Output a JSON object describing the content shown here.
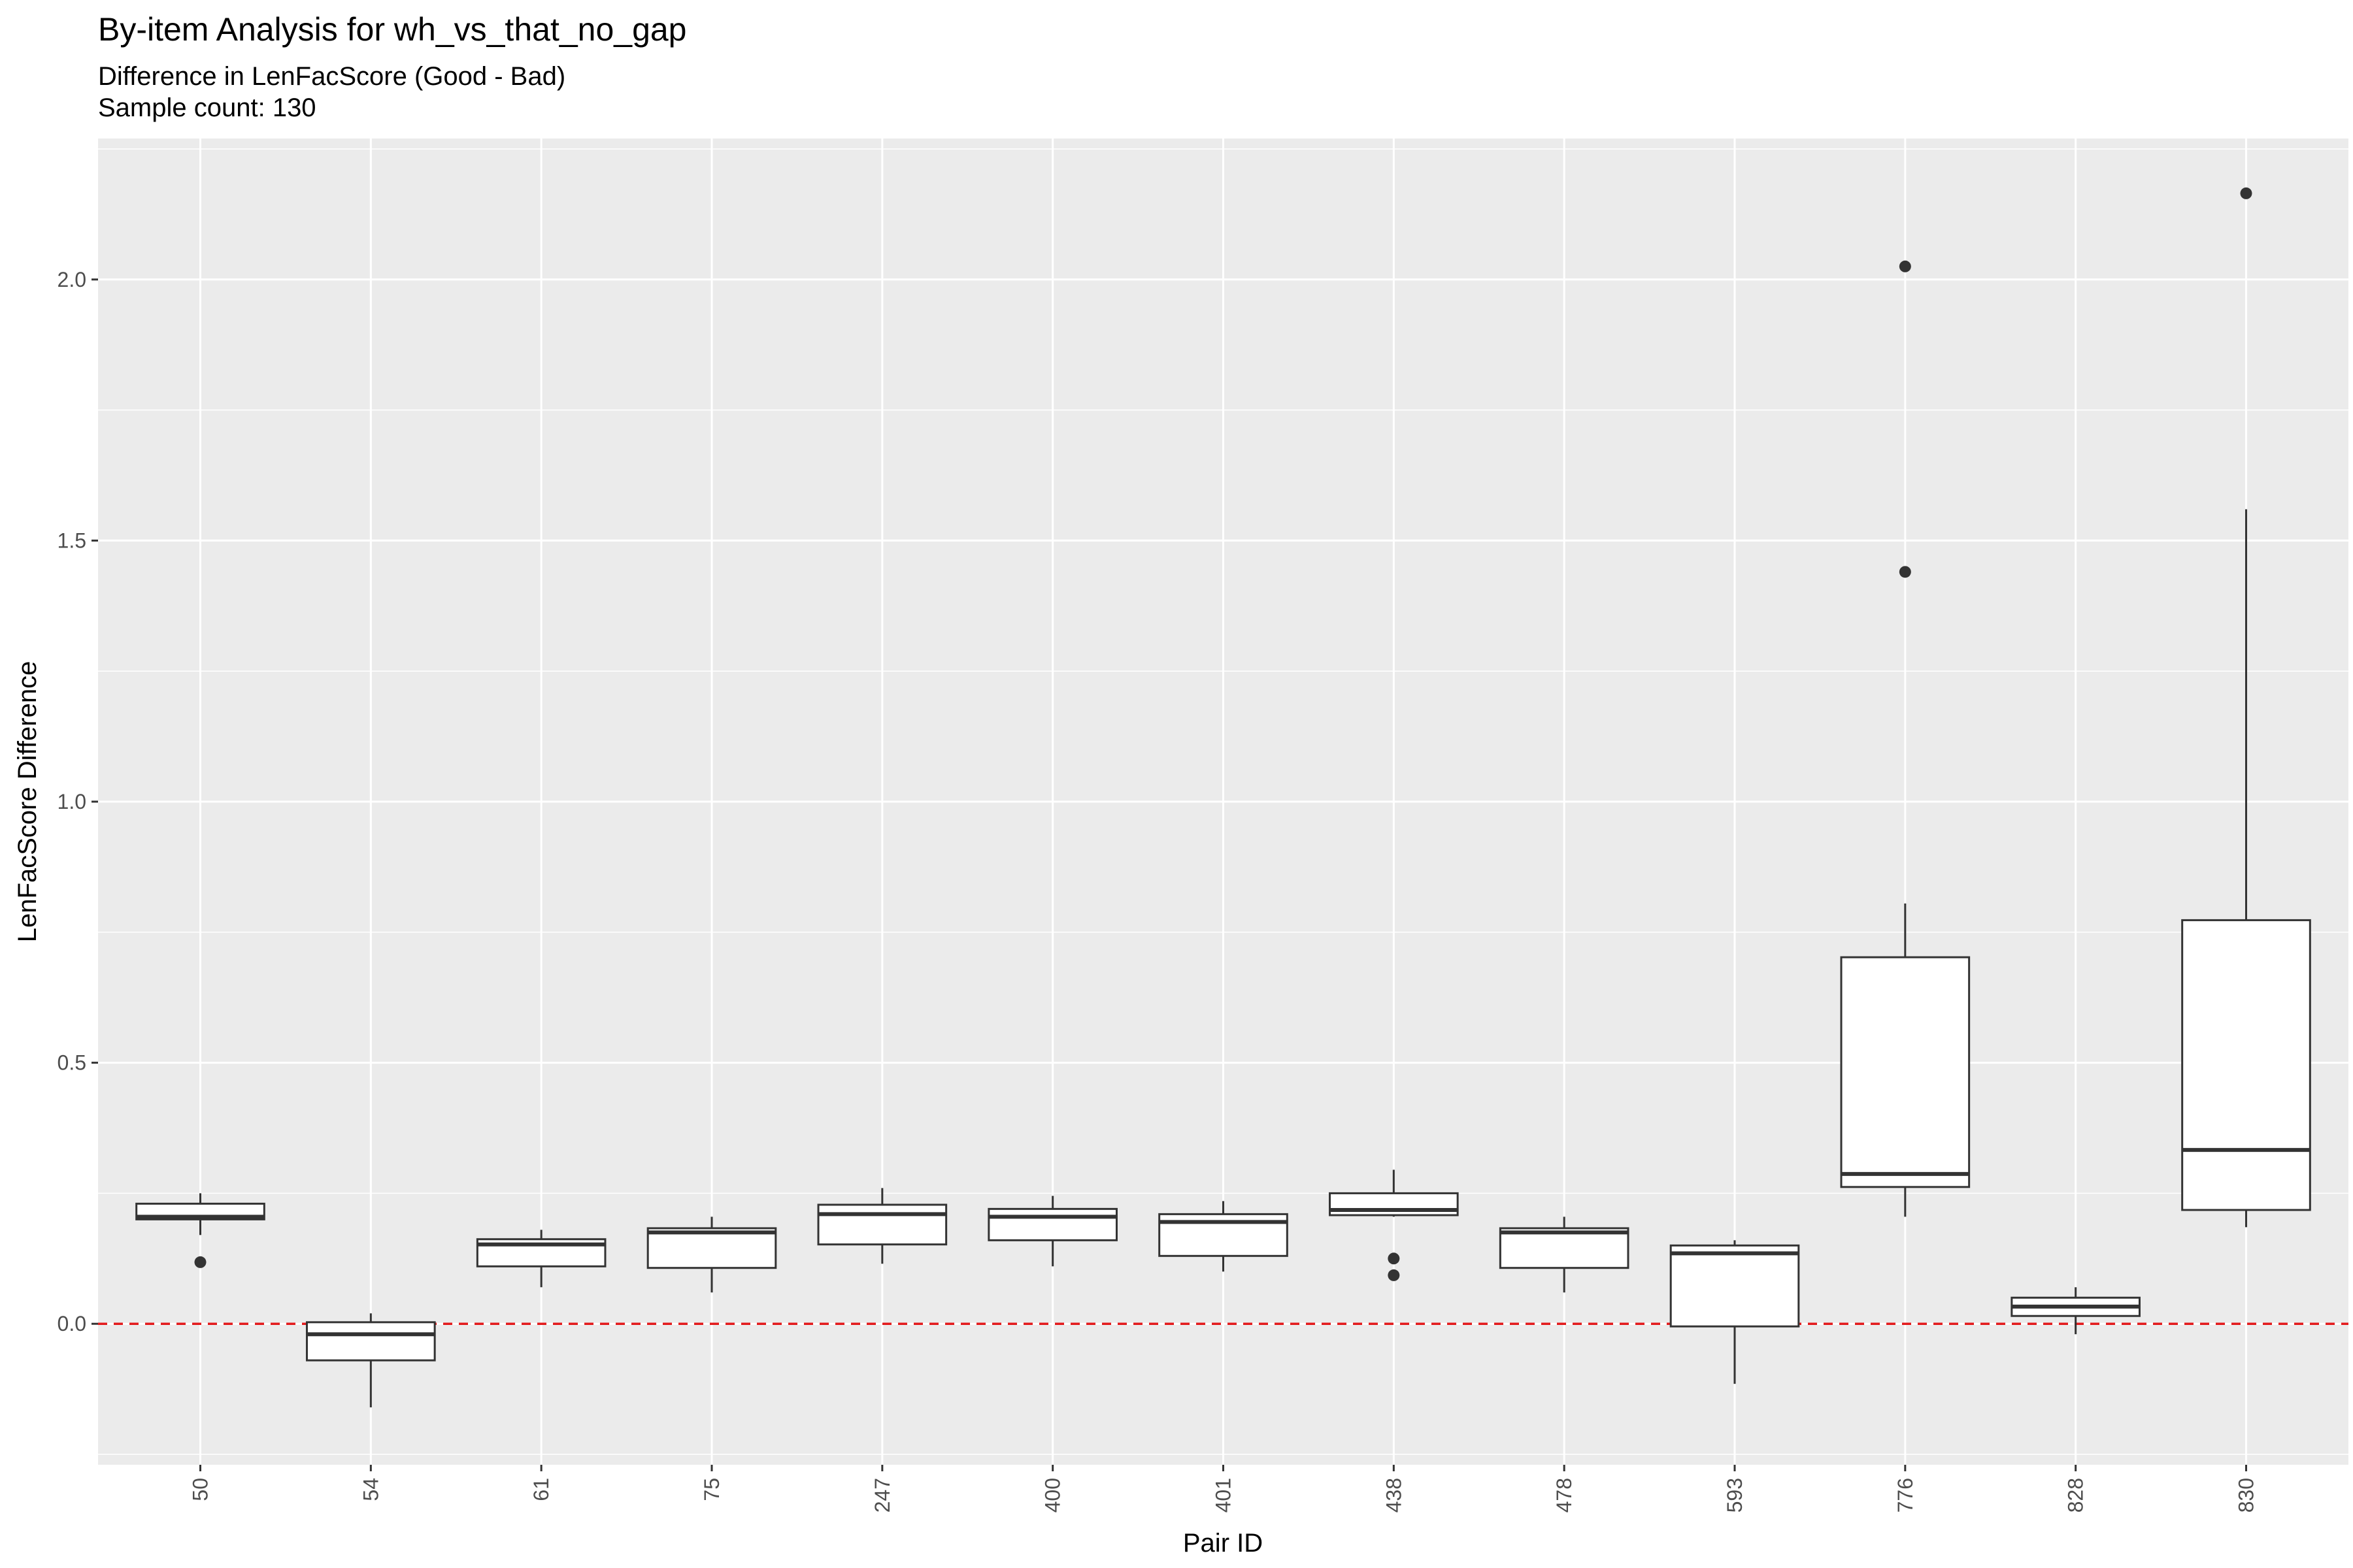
{
  "chart_data": {
    "type": "box",
    "title": "By-item Analysis for wh_vs_that_no_gap",
    "subtitle": "Difference in LenFacScore (Good - Bad)",
    "caption_line": "Sample count: 130",
    "xlabel": "Pair ID",
    "ylabel": "LenFacScore Difference",
    "ylim": [
      -0.27,
      2.27
    ],
    "yticks": [
      0.0,
      0.5,
      1.0,
      1.5,
      2.0
    ],
    "ytick_labels": [
      "0.0",
      "0.5",
      "1.0",
      "1.5",
      "2.0"
    ],
    "reference_line": {
      "y": 0.0,
      "color": "#e31a1c",
      "style": "dashed"
    },
    "grid": true,
    "categories": [
      "50",
      "54",
      "61",
      "75",
      "247",
      "400",
      "401",
      "438",
      "478",
      "593",
      "776",
      "828",
      "830"
    ],
    "boxes": [
      {
        "id": "50",
        "whisker_low": 0.17,
        "q1": 0.2,
        "median": 0.205,
        "q3": 0.23,
        "whisker_high": 0.25,
        "outliers": [
          0.118
        ]
      },
      {
        "id": "54",
        "whisker_low": -0.16,
        "q1": -0.07,
        "median": -0.02,
        "q3": 0.003,
        "whisker_high": 0.02,
        "outliers": []
      },
      {
        "id": "61",
        "whisker_low": 0.07,
        "q1": 0.11,
        "median": 0.152,
        "q3": 0.162,
        "whisker_high": 0.18,
        "outliers": []
      },
      {
        "id": "75",
        "whisker_low": 0.06,
        "q1": 0.107,
        "median": 0.175,
        "q3": 0.183,
        "whisker_high": 0.205,
        "outliers": []
      },
      {
        "id": "247",
        "whisker_low": 0.115,
        "q1": 0.152,
        "median": 0.21,
        "q3": 0.228,
        "whisker_high": 0.26,
        "outliers": []
      },
      {
        "id": "400",
        "whisker_low": 0.11,
        "q1": 0.16,
        "median": 0.205,
        "q3": 0.22,
        "whisker_high": 0.245,
        "outliers": []
      },
      {
        "id": "401",
        "whisker_low": 0.1,
        "q1": 0.13,
        "median": 0.195,
        "q3": 0.21,
        "whisker_high": 0.235,
        "outliers": []
      },
      {
        "id": "438",
        "whisker_low": 0.205,
        "q1": 0.208,
        "median": 0.218,
        "q3": 0.25,
        "whisker_high": 0.295,
        "outliers": [
          0.125,
          0.093
        ]
      },
      {
        "id": "478",
        "whisker_low": 0.06,
        "q1": 0.107,
        "median": 0.175,
        "q3": 0.183,
        "whisker_high": 0.205,
        "outliers": []
      },
      {
        "id": "593",
        "whisker_low": -0.115,
        "q1": -0.005,
        "median": 0.135,
        "q3": 0.15,
        "whisker_high": 0.16,
        "outliers": []
      },
      {
        "id": "776",
        "whisker_low": 0.205,
        "q1": 0.262,
        "median": 0.287,
        "q3": 0.702,
        "whisker_high": 0.805,
        "outliers": [
          2.025,
          1.44
        ]
      },
      {
        "id": "828",
        "whisker_low": -0.02,
        "q1": 0.015,
        "median": 0.033,
        "q3": 0.05,
        "whisker_high": 0.07,
        "outliers": []
      },
      {
        "id": "830",
        "whisker_low": 0.185,
        "q1": 0.218,
        "median": 0.333,
        "q3": 0.773,
        "whisker_high": 1.56,
        "outliers": [
          2.165
        ]
      }
    ]
  }
}
